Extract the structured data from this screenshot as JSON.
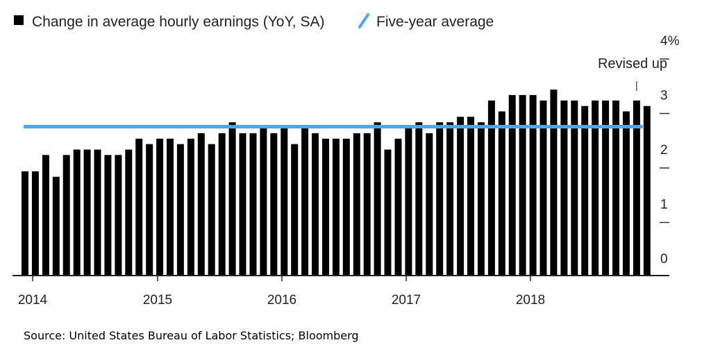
{
  "source": "Source: United States Bureau of Labor Statistics; Bloomberg",
  "chart_data": {
    "type": "bar",
    "title": "",
    "xlabel": "",
    "ylabel": "",
    "ylim": [
      0,
      4
    ],
    "y_ticks": [
      "0",
      "1",
      "2",
      "3",
      "4%"
    ],
    "x_ticks": [
      "2014",
      "2015",
      "2016",
      "2017",
      "2018"
    ],
    "legend": {
      "placement": "top-left"
    },
    "series": [
      {
        "name": "Change in average hourly earnings (YoY, SA)",
        "color": "#000000",
        "values": [
          1.9,
          1.9,
          2.2,
          1.8,
          2.2,
          2.3,
          2.3,
          2.3,
          2.2,
          2.2,
          2.3,
          2.5,
          2.4,
          2.5,
          2.5,
          2.4,
          2.5,
          2.6,
          2.4,
          2.6,
          2.8,
          2.6,
          2.6,
          2.7,
          2.6,
          2.7,
          2.4,
          2.7,
          2.6,
          2.5,
          2.5,
          2.5,
          2.6,
          2.6,
          2.8,
          2.3,
          2.5,
          2.7,
          2.8,
          2.6,
          2.8,
          2.8,
          2.9,
          2.9,
          2.8,
          3.2,
          3.0,
          3.3,
          3.3,
          3.3,
          3.2,
          3.4,
          3.2,
          3.2,
          3.1,
          3.2,
          3.2,
          3.2,
          3.0,
          3.2,
          3.1
        ]
      },
      {
        "name": "Five-year average",
        "color": "#4aa8f0",
        "value": 2.72
      }
    ],
    "annotations": [
      {
        "text": "Revised up",
        "bar_index": 59
      }
    ]
  }
}
